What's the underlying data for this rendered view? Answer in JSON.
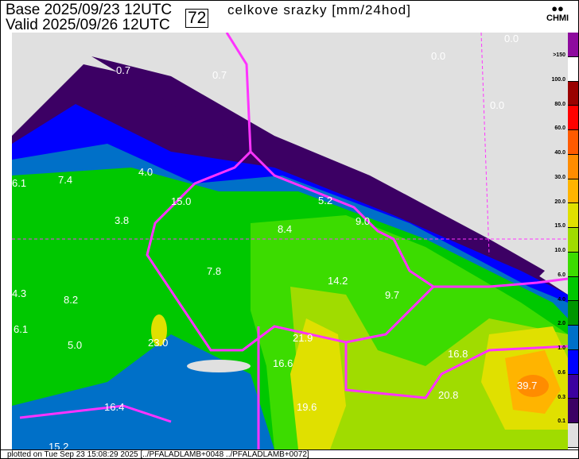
{
  "header": {
    "base_label": "Base",
    "base_value": "2025/09/23 12UTC",
    "valid_label": "Valid",
    "valid_value": "2025/09/26 12UTC",
    "forecast_hour": "72",
    "title": "celkove srazky [mm/24hod]",
    "logo_text": "CHMI"
  },
  "legend": [
    {
      "label": ">150",
      "color": "#8e0a9e"
    },
    {
      "label": "100.0",
      "color": "#ffffff"
    },
    {
      "label": "80.0",
      "color": "#9a0000"
    },
    {
      "label": "60.0",
      "color": "#ff0000"
    },
    {
      "label": "40.0",
      "color": "#ff5a00"
    },
    {
      "label": "30.0",
      "color": "#ff8c00"
    },
    {
      "label": "20.0",
      "color": "#ffb400"
    },
    {
      "label": "15.0",
      "color": "#e0e000"
    },
    {
      "label": "10.0",
      "color": "#a0dc00"
    },
    {
      "label": "6.0",
      "color": "#3cdc00"
    },
    {
      "label": "4.0",
      "color": "#00c800"
    },
    {
      "label": "2.0",
      "color": "#009600"
    },
    {
      "label": "1.0",
      "color": "#0070c8"
    },
    {
      "label": "0.6",
      "color": "#0000ff"
    },
    {
      "label": "0.3",
      "color": "#3c00a0"
    },
    {
      "label": "0.1",
      "color": "#3c0064"
    },
    {
      "label": "",
      "color": "#e0e0e0"
    }
  ],
  "map_values": [
    "0.7",
    "0.7",
    "0.0",
    "0.0",
    "0.0",
    "7.4",
    "4.0",
    "6.1",
    "15.0",
    "5.2",
    "3.8",
    "9.0",
    "8.4",
    "7.8",
    "14.2",
    "4.3",
    "8.2",
    "9.7",
    "6.1",
    "5.0",
    "23.0",
    "21.9",
    "16.6",
    "16.8",
    "39.7",
    "20.8",
    "19.6",
    "16.4",
    "15.2"
  ],
  "footer": "plotted on Tue Sep 23 15:08:29 2025 [../PFALADLAMB+0048 ../PFALADLAMB+0072]",
  "colors": {
    "border": "#ff33ff",
    "background": "#e0e0e0"
  }
}
